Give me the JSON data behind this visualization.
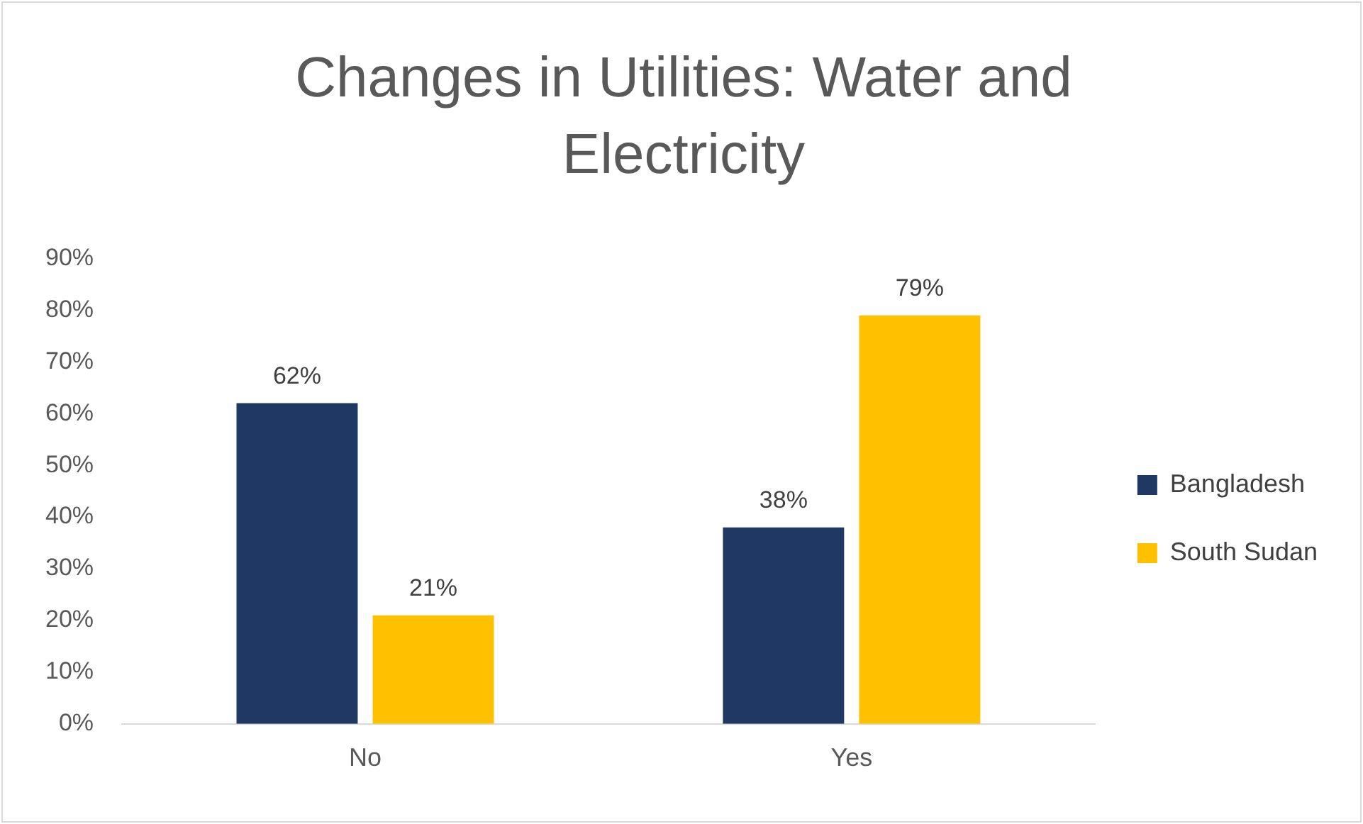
{
  "chart_data": {
    "type": "bar",
    "title": "Changes in Utilities: Water and Electricity",
    "categories": [
      "No",
      "Yes"
    ],
    "series": [
      {
        "name": "Bangladesh",
        "color": "#1f3864",
        "values": [
          62,
          38
        ],
        "value_labels": [
          "62%",
          "38%"
        ]
      },
      {
        "name": "South Sudan",
        "color": "#ffc000",
        "values": [
          21,
          79
        ],
        "value_labels": [
          "21%",
          "79%"
        ]
      }
    ],
    "ylim": [
      0,
      90
    ],
    "yticks": [
      {
        "value": 0,
        "label": "0%"
      },
      {
        "value": 10,
        "label": "10%"
      },
      {
        "value": 20,
        "label": "20%"
      },
      {
        "value": 30,
        "label": "30%"
      },
      {
        "value": 40,
        "label": "40%"
      },
      {
        "value": 50,
        "label": "50%"
      },
      {
        "value": 60,
        "label": "60%"
      },
      {
        "value": 70,
        "label": "70%"
      },
      {
        "value": 80,
        "label": "80%"
      },
      {
        "value": 90,
        "label": "90%"
      }
    ],
    "grid": false,
    "legend": "right"
  }
}
